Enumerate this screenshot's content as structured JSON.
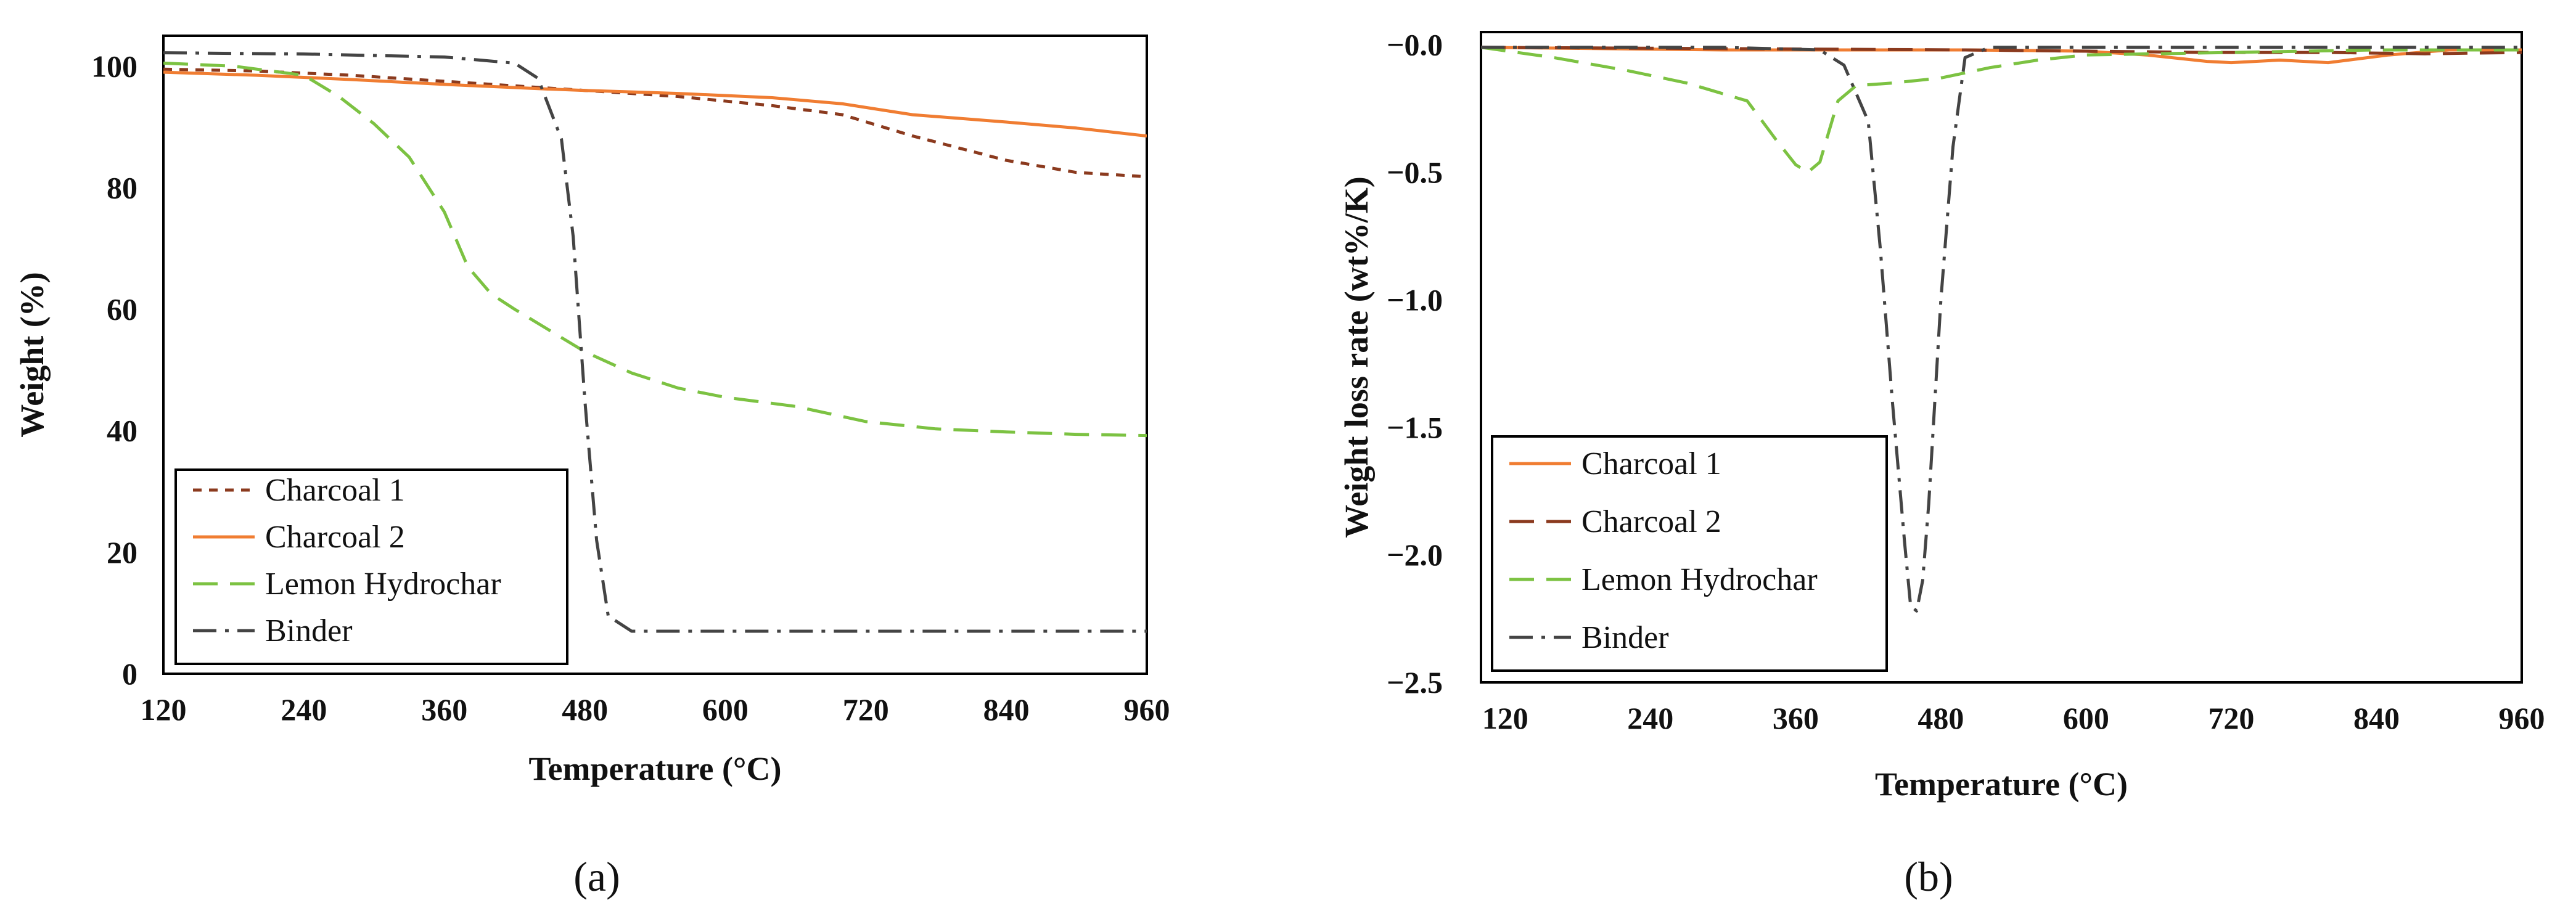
{
  "chart_data": [
    {
      "panel": "(a)",
      "type": "line",
      "title": "",
      "xlabel": "Temperature (°C)",
      "ylabel": "Weight (%)",
      "xlim": [
        120,
        960
      ],
      "ylim": [
        0,
        105
      ],
      "xticks": [
        120,
        240,
        360,
        480,
        600,
        720,
        840,
        960
      ],
      "yticks": [
        0,
        20,
        40,
        60,
        80,
        100
      ],
      "grid": false,
      "legend_position": "bottom-left",
      "series": [
        {
          "name": "Charcoal 1",
          "color": "#8b3a1e",
          "dash": "dotted",
          "x": [
            120,
            200,
            280,
            360,
            440,
            480,
            560,
            640,
            700,
            760,
            840,
            900,
            960
          ],
          "y": [
            99.5,
            99.2,
            98.5,
            97.5,
            96.5,
            96.0,
            95.0,
            93.5,
            92.0,
            88.5,
            84.5,
            82.5,
            81.8
          ]
        },
        {
          "name": "Charcoal 2",
          "color": "#f07d32",
          "dash": "solid",
          "x": [
            120,
            200,
            280,
            360,
            440,
            480,
            560,
            640,
            700,
            760,
            840,
            900,
            960
          ],
          "y": [
            99.0,
            98.5,
            97.8,
            97.0,
            96.3,
            96.0,
            95.5,
            94.8,
            93.8,
            92.0,
            90.8,
            89.8,
            88.5
          ]
        },
        {
          "name": "Lemon Hydrochar",
          "color": "#7cc242",
          "dash": "dashed",
          "x": [
            120,
            180,
            240,
            270,
            300,
            330,
            360,
            380,
            400,
            420,
            450,
            480,
            520,
            560,
            600,
            660,
            720,
            780,
            840,
            900,
            960
          ],
          "y": [
            100.5,
            100.0,
            98.5,
            95.0,
            90.5,
            85.0,
            76.0,
            67.0,
            62.5,
            60.0,
            56.5,
            53.0,
            49.5,
            47.0,
            45.5,
            44.0,
            41.5,
            40.3,
            39.8,
            39.4,
            39.2
          ]
        },
        {
          "name": "Binder",
          "color": "#444444",
          "dash": "dashdot",
          "x": [
            120,
            240,
            360,
            420,
            440,
            460,
            470,
            480,
            490,
            500,
            520,
            600,
            720,
            840,
            960
          ],
          "y": [
            102.2,
            102.0,
            101.5,
            100.5,
            98.0,
            88.0,
            72.0,
            45.0,
            22.0,
            9.5,
            7.0,
            7.0,
            7.0,
            7.0,
            7.0
          ]
        }
      ]
    },
    {
      "panel": "(b)",
      "type": "line",
      "title": "",
      "xlabel": "Temperature (°C)",
      "ylabel": "Weight loss rate (wt%/K)",
      "xlim": [
        100,
        960
      ],
      "ylim": [
        -2.5,
        0.05
      ],
      "xticks": [
        120,
        240,
        360,
        480,
        600,
        720,
        840,
        960
      ],
      "yticks": [
        -2.5,
        -2.0,
        -1.5,
        -1.0,
        -0.5,
        0.0
      ],
      "ytick_labels": [
        "−2.5",
        "−2.0",
        "−1.5",
        "−1.0",
        "−0.5",
        "−0.0"
      ],
      "grid": false,
      "legend_position": "bottom-left",
      "series": [
        {
          "name": "Charcoal 1",
          "color": "#f07d32",
          "dash": "solid",
          "x": [
            100,
            300,
            500,
            600,
            650,
            700,
            720,
            760,
            800,
            850,
            900,
            960
          ],
          "y": [
            -0.01,
            -0.02,
            -0.02,
            -0.025,
            -0.04,
            -0.065,
            -0.07,
            -0.06,
            -0.07,
            -0.04,
            -0.02,
            -0.02
          ]
        },
        {
          "name": "Charcoal 2",
          "color": "#8b3a1e",
          "dash": "dashed",
          "x": [
            100,
            300,
            500,
            600,
            700,
            800,
            880,
            960
          ],
          "y": [
            -0.01,
            -0.015,
            -0.02,
            -0.025,
            -0.03,
            -0.03,
            -0.035,
            -0.03
          ]
        },
        {
          "name": "Lemon Hydrochar",
          "color": "#7cc242",
          "dash": "dashed",
          "x": [
            100,
            160,
            220,
            270,
            320,
            345,
            360,
            370,
            380,
            395,
            410,
            440,
            480,
            520,
            560,
            600,
            720,
            840,
            960
          ],
          "y": [
            -0.01,
            -0.05,
            -0.1,
            -0.15,
            -0.22,
            -0.38,
            -0.47,
            -0.5,
            -0.46,
            -0.22,
            -0.16,
            -0.15,
            -0.13,
            -0.09,
            -0.06,
            -0.04,
            -0.03,
            -0.02,
            -0.02
          ]
        },
        {
          "name": "Binder",
          "color": "#444444",
          "dash": "dashdot",
          "x": [
            100,
            300,
            380,
            400,
            420,
            430,
            440,
            450,
            455,
            460,
            465,
            470,
            480,
            490,
            500,
            520,
            600,
            720,
            960
          ],
          "y": [
            -0.01,
            -0.01,
            -0.02,
            -0.08,
            -0.3,
            -0.8,
            -1.4,
            -1.95,
            -2.2,
            -2.22,
            -2.1,
            -1.8,
            -1.0,
            -0.4,
            -0.05,
            -0.01,
            -0.01,
            -0.01,
            -0.01
          ]
        }
      ]
    }
  ]
}
